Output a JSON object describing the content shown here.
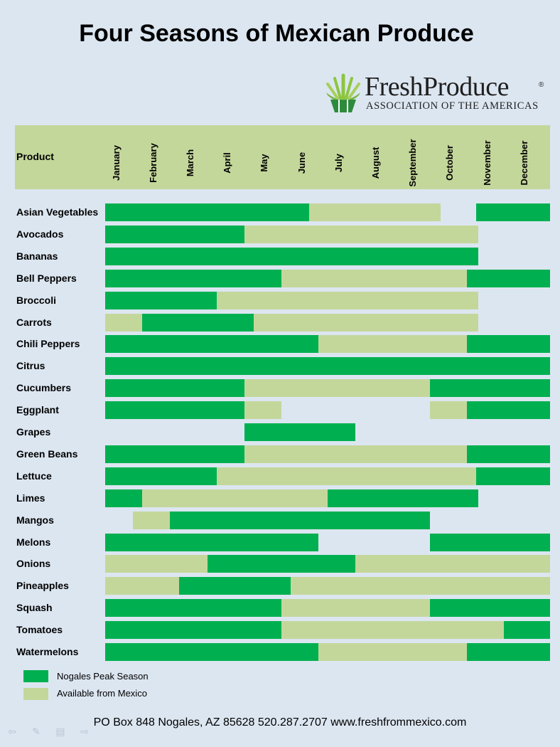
{
  "title": "Four Seasons of Mexican Produce",
  "logo": {
    "name": "FreshProduce",
    "registered": "®",
    "subtitle": "ASSOCIATION OF THE AMERICAS"
  },
  "colors": {
    "peak": "#00b050",
    "available": "#c4d79b",
    "background": "#dce6f1"
  },
  "chart_data": {
    "type": "table",
    "header": "Product",
    "months": [
      "January",
      "February",
      "March",
      "April",
      "May",
      "June",
      "July",
      "August",
      "September",
      "October",
      "November",
      "December"
    ],
    "rows": [
      {
        "product": "Asian Vegetables",
        "segments": [
          {
            "start": 0,
            "end": 5.5,
            "status": "peak"
          },
          {
            "start": 5.5,
            "end": 9.05,
            "status": "available"
          },
          {
            "start": 10.0,
            "end": 12,
            "status": "peak"
          }
        ]
      },
      {
        "product": "Avocados",
        "segments": [
          {
            "start": 0,
            "end": 3.75,
            "status": "peak"
          },
          {
            "start": 3.75,
            "end": 10.05,
            "status": "available"
          }
        ]
      },
      {
        "product": "Bananas",
        "segments": [
          {
            "start": 0,
            "end": 10.05,
            "status": "peak"
          }
        ]
      },
      {
        "product": "Bell Peppers",
        "segments": [
          {
            "start": 0,
            "end": 4.75,
            "status": "peak"
          },
          {
            "start": 4.75,
            "end": 9.75,
            "status": "available"
          },
          {
            "start": 9.75,
            "end": 12,
            "status": "peak"
          }
        ]
      },
      {
        "product": "Broccoli",
        "segments": [
          {
            "start": 0,
            "end": 3.0,
            "status": "peak"
          },
          {
            "start": 3.0,
            "end": 10.05,
            "status": "available"
          }
        ]
      },
      {
        "product": "Carrots",
        "segments": [
          {
            "start": 0,
            "end": 1.0,
            "status": "available"
          },
          {
            "start": 1.0,
            "end": 4.0,
            "status": "peak"
          },
          {
            "start": 4.0,
            "end": 10.05,
            "status": "available"
          }
        ]
      },
      {
        "product": "Chili Peppers",
        "segments": [
          {
            "start": 0,
            "end": 5.75,
            "status": "peak"
          },
          {
            "start": 5.75,
            "end": 9.75,
            "status": "available"
          },
          {
            "start": 9.75,
            "end": 12,
            "status": "peak"
          }
        ]
      },
      {
        "product": "Citrus",
        "segments": [
          {
            "start": 0,
            "end": 12,
            "status": "peak"
          }
        ]
      },
      {
        "product": "Cucumbers",
        "segments": [
          {
            "start": 0,
            "end": 3.75,
            "status": "peak"
          },
          {
            "start": 3.75,
            "end": 8.75,
            "status": "available"
          },
          {
            "start": 8.75,
            "end": 12,
            "status": "peak"
          }
        ]
      },
      {
        "product": "Eggplant",
        "segments": [
          {
            "start": 0,
            "end": 3.75,
            "status": "peak"
          },
          {
            "start": 3.75,
            "end": 4.75,
            "status": "available"
          },
          {
            "start": 8.75,
            "end": 9.75,
            "status": "available"
          },
          {
            "start": 9.75,
            "end": 12,
            "status": "peak"
          }
        ]
      },
      {
        "product": "Grapes",
        "segments": [
          {
            "start": 3.75,
            "end": 6.75,
            "status": "peak"
          }
        ]
      },
      {
        "product": "Green Beans",
        "segments": [
          {
            "start": 0,
            "end": 3.75,
            "status": "peak"
          },
          {
            "start": 3.75,
            "end": 9.75,
            "status": "available"
          },
          {
            "start": 9.75,
            "end": 12,
            "status": "peak"
          }
        ]
      },
      {
        "product": "Lettuce",
        "segments": [
          {
            "start": 0,
            "end": 3.0,
            "status": "peak"
          },
          {
            "start": 3.0,
            "end": 10.0,
            "status": "available"
          },
          {
            "start": 10.0,
            "end": 12,
            "status": "peak"
          }
        ]
      },
      {
        "product": "Limes",
        "segments": [
          {
            "start": 0,
            "end": 1.0,
            "status": "peak"
          },
          {
            "start": 1.0,
            "end": 6.0,
            "status": "available"
          },
          {
            "start": 6.0,
            "end": 10.05,
            "status": "peak"
          }
        ]
      },
      {
        "product": "Mangos",
        "segments": [
          {
            "start": 0.75,
            "end": 1.75,
            "status": "available"
          },
          {
            "start": 1.75,
            "end": 8.75,
            "status": "peak"
          }
        ]
      },
      {
        "product": "Melons",
        "segments": [
          {
            "start": 0,
            "end": 5.75,
            "status": "peak"
          },
          {
            "start": 8.75,
            "end": 12,
            "status": "peak"
          }
        ]
      },
      {
        "product": "Onions",
        "segments": [
          {
            "start": 0,
            "end": 2.75,
            "status": "available"
          },
          {
            "start": 2.75,
            "end": 6.75,
            "status": "peak"
          },
          {
            "start": 6.75,
            "end": 12,
            "status": "available"
          }
        ]
      },
      {
        "product": "Pineapples",
        "segments": [
          {
            "start": 0,
            "end": 2.0,
            "status": "available"
          },
          {
            "start": 2.0,
            "end": 5.0,
            "status": "peak"
          },
          {
            "start": 5.0,
            "end": 12,
            "status": "available"
          }
        ]
      },
      {
        "product": "Squash",
        "segments": [
          {
            "start": 0,
            "end": 4.75,
            "status": "peak"
          },
          {
            "start": 4.75,
            "end": 8.75,
            "status": "available"
          },
          {
            "start": 8.75,
            "end": 12,
            "status": "peak"
          }
        ]
      },
      {
        "product": "Tomatoes",
        "segments": [
          {
            "start": 0,
            "end": 4.75,
            "status": "peak"
          },
          {
            "start": 4.75,
            "end": 10.75,
            "status": "available"
          },
          {
            "start": 10.75,
            "end": 12,
            "status": "peak"
          }
        ]
      },
      {
        "product": "Watermelons",
        "segments": [
          {
            "start": 0,
            "end": 5.75,
            "status": "peak"
          },
          {
            "start": 5.75,
            "end": 9.75,
            "status": "available"
          },
          {
            "start": 9.75,
            "end": 12,
            "status": "peak"
          }
        ]
      }
    ],
    "legend": [
      {
        "status": "peak",
        "label": "Nogales Peak Season"
      },
      {
        "status": "available",
        "label": "Available from Mexico"
      }
    ],
    "legend_position": "bottom-left"
  },
  "footer": "PO Box 848  Nogales, AZ  85628  520.287.2707  www.freshfrommexico.com",
  "nav_icons": [
    "back-arrow-icon",
    "pen-icon",
    "menu-icon",
    "forward-arrow-icon"
  ]
}
